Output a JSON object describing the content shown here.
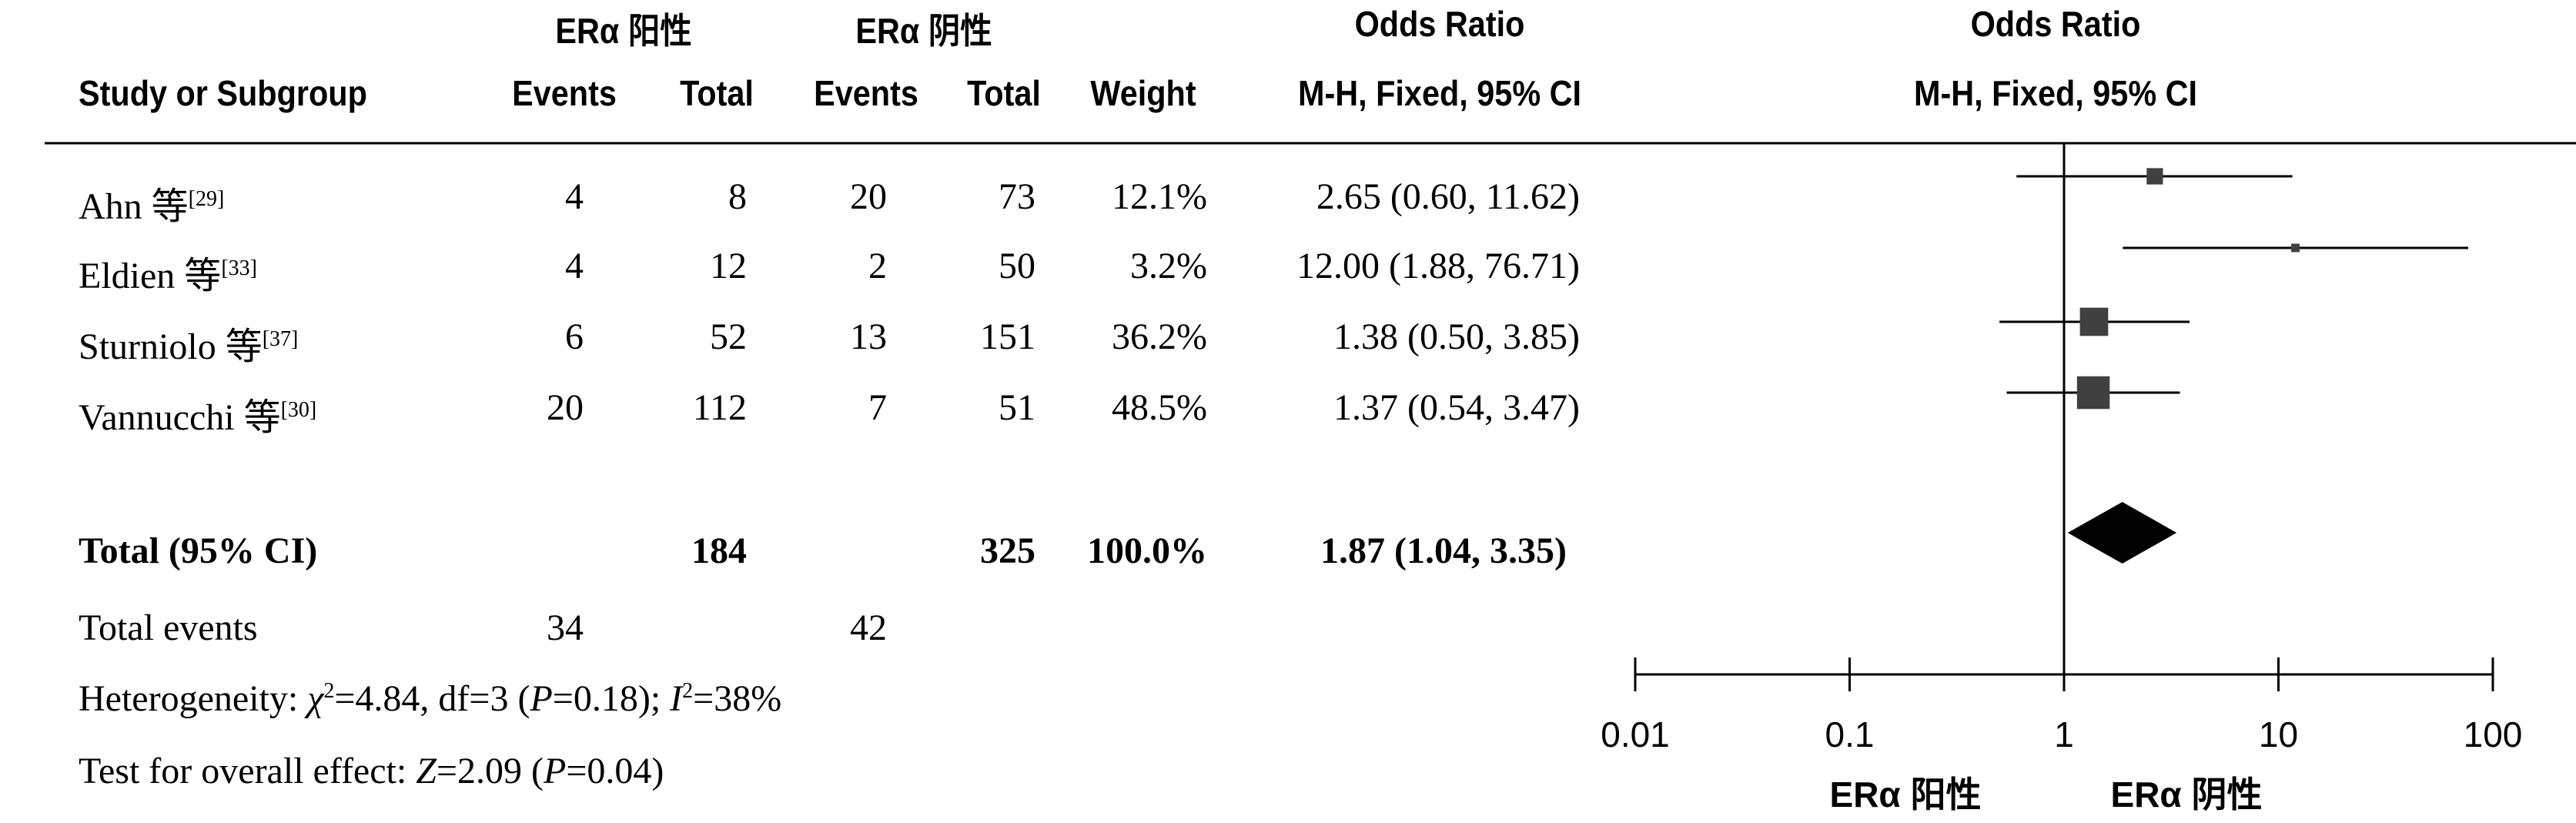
{
  "header": {
    "group1": "ERα 阳性",
    "group2": "ERα 阴性",
    "odds_ratio_col": "Odds Ratio",
    "method_col": "M-H, Fixed, 95% CI",
    "plot_title": "Odds Ratio",
    "plot_method": "M-H, Fixed, 95% CI",
    "study_col": "Study or Subgroup",
    "events1": "Events",
    "total1": "Total",
    "events2": "Events",
    "total2": "Total",
    "weight": "Weight"
  },
  "studies": [
    {
      "name": "Ahn 等",
      "ref": "[29]",
      "e1": "4",
      "t1": "8",
      "e2": "20",
      "t2": "73",
      "weight": "12.1%",
      "ci_text": "2.65 (0.60, 11.62)"
    },
    {
      "name": "Eldien 等",
      "ref": "[33]",
      "e1": "4",
      "t1": "12",
      "e2": "2",
      "t2": "50",
      "weight": "3.2%",
      "ci_text": "12.00 (1.88, 76.71)"
    },
    {
      "name": "Sturniolo 等",
      "ref": "[37]",
      "e1": "6",
      "t1": "52",
      "e2": "13",
      "t2": "151",
      "weight": "36.2%",
      "ci_text": "1.38 (0.50, 3.85)"
    },
    {
      "name": "Vannucchi 等",
      "ref": "[30]",
      "e1": "20",
      "t1": "112",
      "e2": "7",
      "t2": "51",
      "weight": "48.5%",
      "ci_text": "1.37 (0.54, 3.47)"
    }
  ],
  "total": {
    "label": "Total (95% CI)",
    "t1": "184",
    "t2": "325",
    "weight": "100.0%",
    "ci_text": "1.87 (1.04, 3.35)"
  },
  "total_events": {
    "label": "Total events",
    "e1": "34",
    "e2": "42"
  },
  "heterogeneity": {
    "prefix": "Heterogeneity: ",
    "chi": "χ",
    "chi_value": "=4.84, df=3 (",
    "p": "P",
    "p_value": "=0.18); ",
    "i": "I",
    "i_value": "=38%"
  },
  "overall_effect": {
    "prefix": "Test for overall effect: ",
    "z": "Z",
    "z_value": "=2.09 (",
    "p": "P",
    "p_value": "=0.04)"
  },
  "axis": {
    "ticks": [
      "0.01",
      "0.1",
      "1",
      "10",
      "100"
    ],
    "left_label": "ERα 阳性",
    "right_label": "ERα 阴性"
  },
  "chart_data": {
    "type": "scatter",
    "scale": "log",
    "xlim": [
      0.01,
      100
    ],
    "x_ticks": [
      0.01,
      0.1,
      1,
      10,
      100
    ],
    "studies": [
      {
        "or": 2.65,
        "lo": 0.6,
        "hi": 11.62,
        "weight": 12.1
      },
      {
        "or": 12.0,
        "lo": 1.88,
        "hi": 76.71,
        "weight": 3.2
      },
      {
        "or": 1.38,
        "lo": 0.5,
        "hi": 3.85,
        "weight": 36.2
      },
      {
        "or": 1.37,
        "lo": 0.54,
        "hi": 3.47,
        "weight": 48.5
      }
    ],
    "pooled": {
      "or": 1.87,
      "lo": 1.04,
      "hi": 3.35
    },
    "colors": {
      "marker": "#404040",
      "diamond": "#000000",
      "line": "#000000"
    }
  }
}
